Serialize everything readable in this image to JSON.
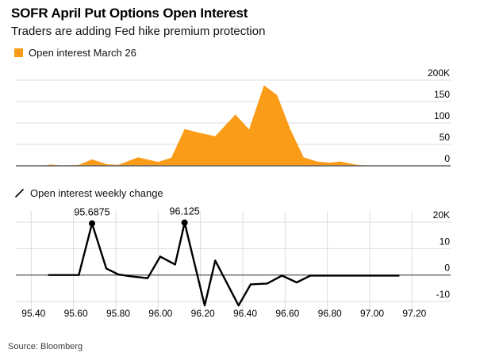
{
  "header": {
    "title": "SOFR April Put Options Open Interest",
    "subtitle": "Traders are adding Fed hike premium protection"
  },
  "source_label": "Source: Bloomberg",
  "colors": {
    "accent_orange": "#FA9C18",
    "line_black": "#000000",
    "gridline": "#dcdcdc",
    "axis_line": "#5f6062",
    "text": "#000000"
  },
  "chart_data": [
    {
      "id": "open_interest",
      "type": "area",
      "legend": "Open interest March 26",
      "legend_icon": "orange-square",
      "color": "#FA9C18",
      "ylabel": "",
      "ylim": [
        0,
        200
      ],
      "yticks": [
        {
          "v": 200,
          "label": "200K"
        },
        {
          "v": 150,
          "label": "150"
        },
        {
          "v": 100,
          "label": "100"
        },
        {
          "v": 50,
          "label": "50"
        },
        {
          "v": 0,
          "label": "0"
        }
      ],
      "x_shared_with": "weekly_change",
      "points": [
        [
          95.455,
          0
        ],
        [
          95.49,
          3
        ],
        [
          95.545,
          1
        ],
        [
          95.625,
          2
        ],
        [
          95.6875,
          15
        ],
        [
          95.76,
          3.5
        ],
        [
          95.8125,
          2.5
        ],
        [
          95.905,
          20
        ],
        [
          96.0,
          9
        ],
        [
          96.0625,
          19
        ],
        [
          96.125,
          86
        ],
        [
          96.1875,
          78
        ],
        [
          96.27,
          69
        ],
        [
          96.365,
          120
        ],
        [
          96.43,
          85
        ],
        [
          96.5,
          188
        ],
        [
          96.5625,
          165
        ],
        [
          96.625,
          85
        ],
        [
          96.6875,
          20
        ],
        [
          96.75,
          10
        ],
        [
          96.8125,
          7.5
        ],
        [
          96.86,
          10
        ],
        [
          96.94,
          2.5
        ],
        [
          97.01,
          0.5
        ],
        [
          97.1,
          0
        ]
      ]
    },
    {
      "id": "weekly_change",
      "type": "line",
      "legend": "Open interest weekly change",
      "legend_icon": "diagonal-line",
      "color": "#000000",
      "ylim": [
        -14,
        22
      ],
      "yticks": [
        {
          "v": 20,
          "label": "20K"
        },
        {
          "v": 10,
          "label": "10"
        },
        {
          "v": 0,
          "label": "0"
        },
        {
          "v": -10,
          "label": "-10"
        }
      ],
      "xlim": [
        95.3276,
        97.3824
      ],
      "xticks": [
        {
          "v": 95.4,
          "label": "95.40"
        },
        {
          "v": 95.6,
          "label": "95.60"
        },
        {
          "v": 95.8,
          "label": "95.80"
        },
        {
          "v": 96.0,
          "label": "96.00"
        },
        {
          "v": 96.2,
          "label": "96.20"
        },
        {
          "v": 96.4,
          "label": "96.40"
        },
        {
          "v": 96.6,
          "label": "96.60"
        },
        {
          "v": 96.8,
          "label": "96.80"
        },
        {
          "v": 97.0,
          "label": "97.00"
        },
        {
          "v": 97.2,
          "label": "97.20"
        }
      ],
      "points": [
        [
          95.48,
          0
        ],
        [
          95.625,
          0
        ],
        [
          95.6875,
          19.5
        ],
        [
          95.755,
          2.5
        ],
        [
          95.8125,
          0.2
        ],
        [
          95.875,
          -0.5
        ],
        [
          95.95,
          -1.2
        ],
        [
          96.01,
          7
        ],
        [
          96.08,
          4
        ],
        [
          96.125,
          19.8
        ],
        [
          96.22,
          -11.5
        ],
        [
          96.27,
          5.5
        ],
        [
          96.38,
          -11.5
        ],
        [
          96.4375,
          -3.5
        ],
        [
          96.515,
          -3.2
        ],
        [
          96.585,
          -0.2
        ],
        [
          96.655,
          -2.8
        ],
        [
          96.72,
          -0.2
        ],
        [
          97.14,
          -0.2
        ]
      ],
      "annotations": [
        {
          "label": "95.6875",
          "x": 95.6875,
          "y": 19.5
        },
        {
          "label": "96.125",
          "x": 96.125,
          "y": 19.8
        }
      ]
    }
  ]
}
